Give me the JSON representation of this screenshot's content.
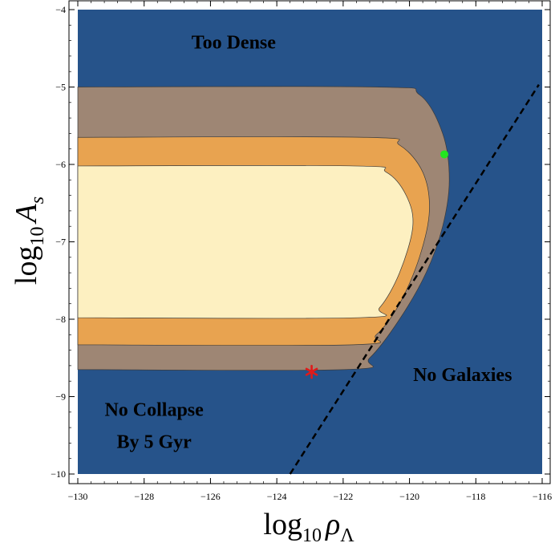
{
  "chart_data": {
    "type": "contour",
    "xlabel": {
      "base": "log",
      "sub": "10",
      "var": "ρ",
      "varsub": "Λ"
    },
    "ylabel": {
      "base": "log",
      "sub": "10",
      "var": "A",
      "varsub": "s"
    },
    "xlim": [
      -130,
      -116
    ],
    "ylim": [
      -10,
      -4
    ],
    "x_ticks": [
      "−130",
      "−128",
      "−126",
      "−124",
      "−122",
      "−120",
      "−118",
      "−116"
    ],
    "x_tick_values": [
      -130,
      -128,
      -126,
      -124,
      -122,
      -120,
      -118,
      -116
    ],
    "y_ticks": [
      "−4",
      "−5",
      "−6",
      "−7",
      "−8",
      "−9",
      "−10"
    ],
    "y_tick_values": [
      -4,
      -5,
      -6,
      -7,
      -8,
      -9,
      -10
    ],
    "grid": false,
    "colors": {
      "background": "#26538a",
      "outer": "#9e8674",
      "middle": "#e8a350",
      "inner": "#fdf0c1",
      "green_point": "#22e61f",
      "red_point": "#e01a1a",
      "dashed_line": "#000000"
    },
    "regions": [
      {
        "name": "outer",
        "boundary": [
          [
            -130,
            -5.0
          ],
          [
            -121,
            -5.0
          ],
          [
            -119.7,
            -5.1
          ],
          [
            -119,
            -5.6
          ],
          [
            -118.8,
            -6.2
          ],
          [
            -119.0,
            -6.8
          ],
          [
            -119.5,
            -7.4
          ],
          [
            -120.3,
            -8.0
          ],
          [
            -121.2,
            -8.5
          ],
          [
            -121.9,
            -8.65
          ],
          [
            -130,
            -8.65
          ]
        ]
      },
      {
        "name": "middle",
        "boundary": [
          [
            -130,
            -5.65
          ],
          [
            -121.3,
            -5.65
          ],
          [
            -120.3,
            -5.75
          ],
          [
            -119.6,
            -6.1
          ],
          [
            -119.4,
            -6.6
          ],
          [
            -119.7,
            -7.2
          ],
          [
            -120.3,
            -7.8
          ],
          [
            -121.0,
            -8.2
          ],
          [
            -121.7,
            -8.33
          ],
          [
            -130,
            -8.33
          ]
        ]
      },
      {
        "name": "inner",
        "boundary": [
          [
            -130,
            -6.02
          ],
          [
            -121.7,
            -6.02
          ],
          [
            -120.7,
            -6.1
          ],
          [
            -120.1,
            -6.4
          ],
          [
            -119.9,
            -6.8
          ],
          [
            -120.3,
            -7.4
          ],
          [
            -120.9,
            -7.85
          ],
          [
            -121.5,
            -7.98
          ],
          [
            -130,
            -7.98
          ]
        ]
      }
    ],
    "points": [
      {
        "name": "green-point",
        "marker": "circle",
        "x": -118.95,
        "y": -5.87
      },
      {
        "name": "red-point",
        "marker": "asterisk",
        "x": -122.95,
        "y": -8.68
      }
    ],
    "dashed_line": {
      "x1": -123.6,
      "y1": -10,
      "x2": -116.1,
      "y2": -4.97
    },
    "annotations": [
      {
        "name": "label-too-dense",
        "lines": [
          "Too Dense"
        ],
        "x": -125.3,
        "y": -4.5
      },
      {
        "name": "label-no-galaxies",
        "lines": [
          "No Galaxies"
        ],
        "x": -118.4,
        "y": -8.8
      },
      {
        "name": "label-no-collapse",
        "lines": [
          "No Collapse",
          "By 5 Gyr"
        ],
        "x": -127.7,
        "y": -9.25
      }
    ]
  }
}
